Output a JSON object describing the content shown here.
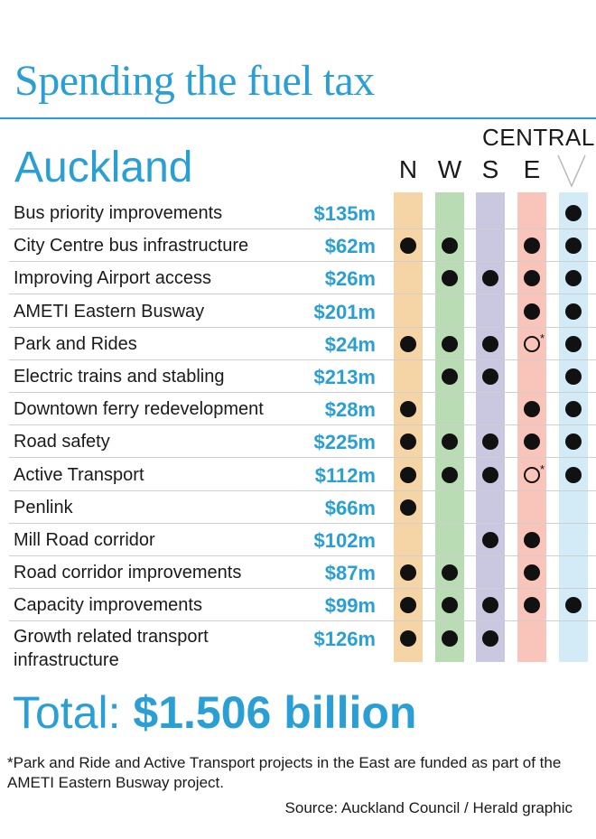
{
  "title": "Spending the fuel tax",
  "subtitle": "Auckland",
  "central_label": "CENTRAL",
  "total": {
    "label": "Total:",
    "amount": "$1.506 billion"
  },
  "footnote": "*Park and Ride and Active Transport projects in the East are funded as part of the AMETI Eastern Busway project.",
  "source": "Source: Auckland Council / Herald graphic",
  "colors": {
    "accent": "#2a9fd6",
    "N": "#f5d5a5",
    "W": "#b9dcb4",
    "S": "#cac8e0",
    "E": "#f9c5bb",
    "C": "#d2ebf7"
  },
  "chart_data": {
    "type": "table",
    "columns": [
      "N",
      "W",
      "S",
      "E",
      ""
    ],
    "rows": [
      {
        "project": "Bus priority improvements",
        "amount": "$135m",
        "dots": [
          0,
          0,
          0,
          0,
          1
        ]
      },
      {
        "project": "City Centre bus infrastructure",
        "amount": "$62m",
        "dots": [
          1,
          1,
          0,
          1,
          1
        ]
      },
      {
        "project": "Improving Airport access",
        "amount": "$26m",
        "dots": [
          0,
          1,
          1,
          1,
          1
        ]
      },
      {
        "project": "AMETI Eastern Busway",
        "amount": "$201m",
        "dots": [
          0,
          0,
          0,
          1,
          1
        ]
      },
      {
        "project": "Park and Rides",
        "amount": "$24m",
        "dots": [
          1,
          1,
          1,
          2,
          1
        ]
      },
      {
        "project": "Electric trains and stabling",
        "amount": "$213m",
        "dots": [
          0,
          1,
          1,
          0,
          1
        ]
      },
      {
        "project": "Downtown ferry redevelopment",
        "amount": "$28m",
        "dots": [
          1,
          0,
          0,
          1,
          1
        ]
      },
      {
        "project": "Road safety",
        "amount": "$225m",
        "dots": [
          1,
          1,
          1,
          1,
          1
        ]
      },
      {
        "project": "Active Transport",
        "amount": "$112m",
        "dots": [
          1,
          1,
          1,
          2,
          1
        ]
      },
      {
        "project": "Penlink",
        "amount": "$66m",
        "dots": [
          1,
          0,
          0,
          0,
          0
        ]
      },
      {
        "project": "Mill Road corridor",
        "amount": "$102m",
        "dots": [
          0,
          0,
          1,
          1,
          0
        ]
      },
      {
        "project": "Road corridor improvements",
        "amount": "$87m",
        "dots": [
          1,
          1,
          0,
          1,
          0
        ]
      },
      {
        "project": "Capacity improvements",
        "amount": "$99m",
        "dots": [
          1,
          1,
          1,
          1,
          1
        ]
      },
      {
        "project": "Growth related transport infrastructure",
        "amount": "$126m",
        "dots": [
          1,
          1,
          1,
          0,
          0
        ]
      }
    ],
    "legend": "0 = none, 1 = filled dot, 2 = hollow dot (funded via AMETI Eastern Busway)"
  }
}
